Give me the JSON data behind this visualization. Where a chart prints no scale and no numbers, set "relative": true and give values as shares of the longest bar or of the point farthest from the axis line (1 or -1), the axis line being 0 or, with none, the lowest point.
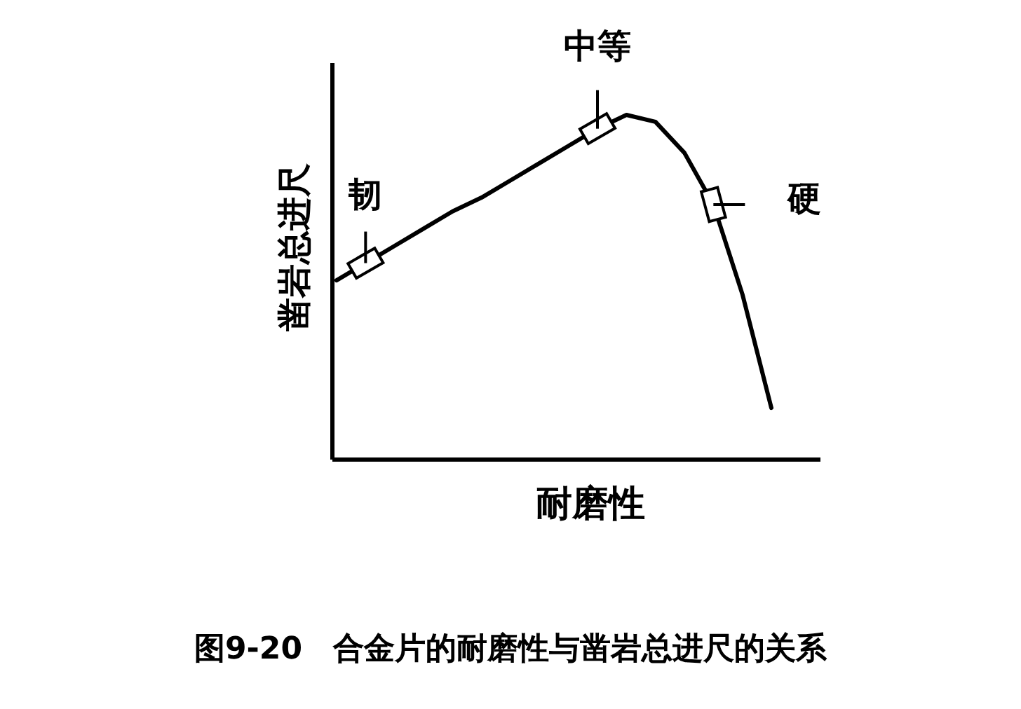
{
  "chart_data": {
    "type": "line",
    "relative": true,
    "title": "图9-20　合金片的耐磨性与凿岩总进尺的关系",
    "xlabel": "耐磨性",
    "ylabel": "凿岩总进尺",
    "color": "#000000",
    "categories": [
      null,
      null,
      null,
      null,
      null,
      null,
      null,
      null,
      null,
      null,
      null,
      null,
      null,
      null,
      null,
      null
    ],
    "values": [
      0.52,
      0.57,
      0.62,
      0.67,
      0.72,
      0.76,
      0.81,
      0.86,
      0.91,
      0.96,
      1.0,
      0.98,
      0.89,
      0.74,
      0.48,
      0.15
    ],
    "annotations": [
      "韧",
      "中等",
      "硬"
    ]
  }
}
